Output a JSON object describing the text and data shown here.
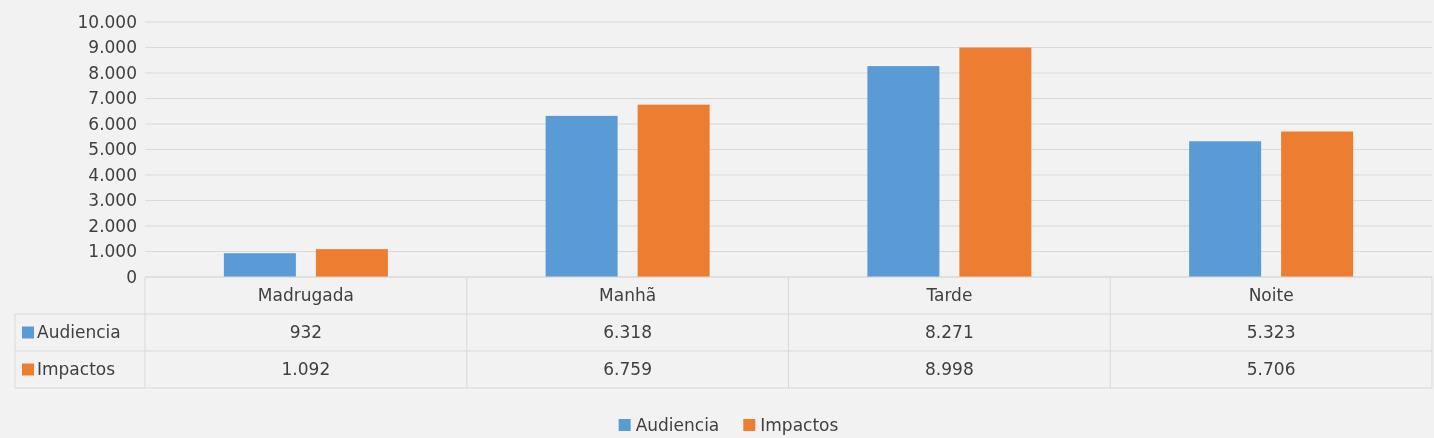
{
  "chart_data": {
    "type": "bar",
    "categories": [
      "Madrugada",
      "Manhã",
      "Tarde",
      "Noite"
    ],
    "series": [
      {
        "name": "Audiencia",
        "color": "#5b9bd5",
        "values": [
          932,
          6318,
          8271,
          5323
        ],
        "value_labels": [
          "932",
          "6.318",
          "8.271",
          "5.323"
        ]
      },
      {
        "name": "Impactos",
        "color": "#ed7d31",
        "values": [
          1092,
          6759,
          8998,
          5706
        ],
        "value_labels": [
          "1.092",
          "6.759",
          "8.998",
          "5.706"
        ]
      }
    ],
    "ylim": [
      0,
      10000
    ],
    "yticks": [
      0,
      {
        "value": 1000,
        "label": "1.000"
      },
      {
        "value": 2000,
        "label": "2.000"
      },
      {
        "value": 3000,
        "label": "3.000"
      },
      {
        "value": 4000,
        "label": "4.000"
      },
      {
        "value": 5000,
        "label": "5.000"
      },
      {
        "value": 6000,
        "label": "6.000"
      },
      {
        "value": 7000,
        "label": "7.000"
      },
      {
        "value": 8000,
        "label": "8.000"
      },
      {
        "value": 9000,
        "label": "9.000"
      },
      {
        "value": 10000,
        "label": "10.000"
      }
    ],
    "grid": "y",
    "legend": "bottom"
  }
}
